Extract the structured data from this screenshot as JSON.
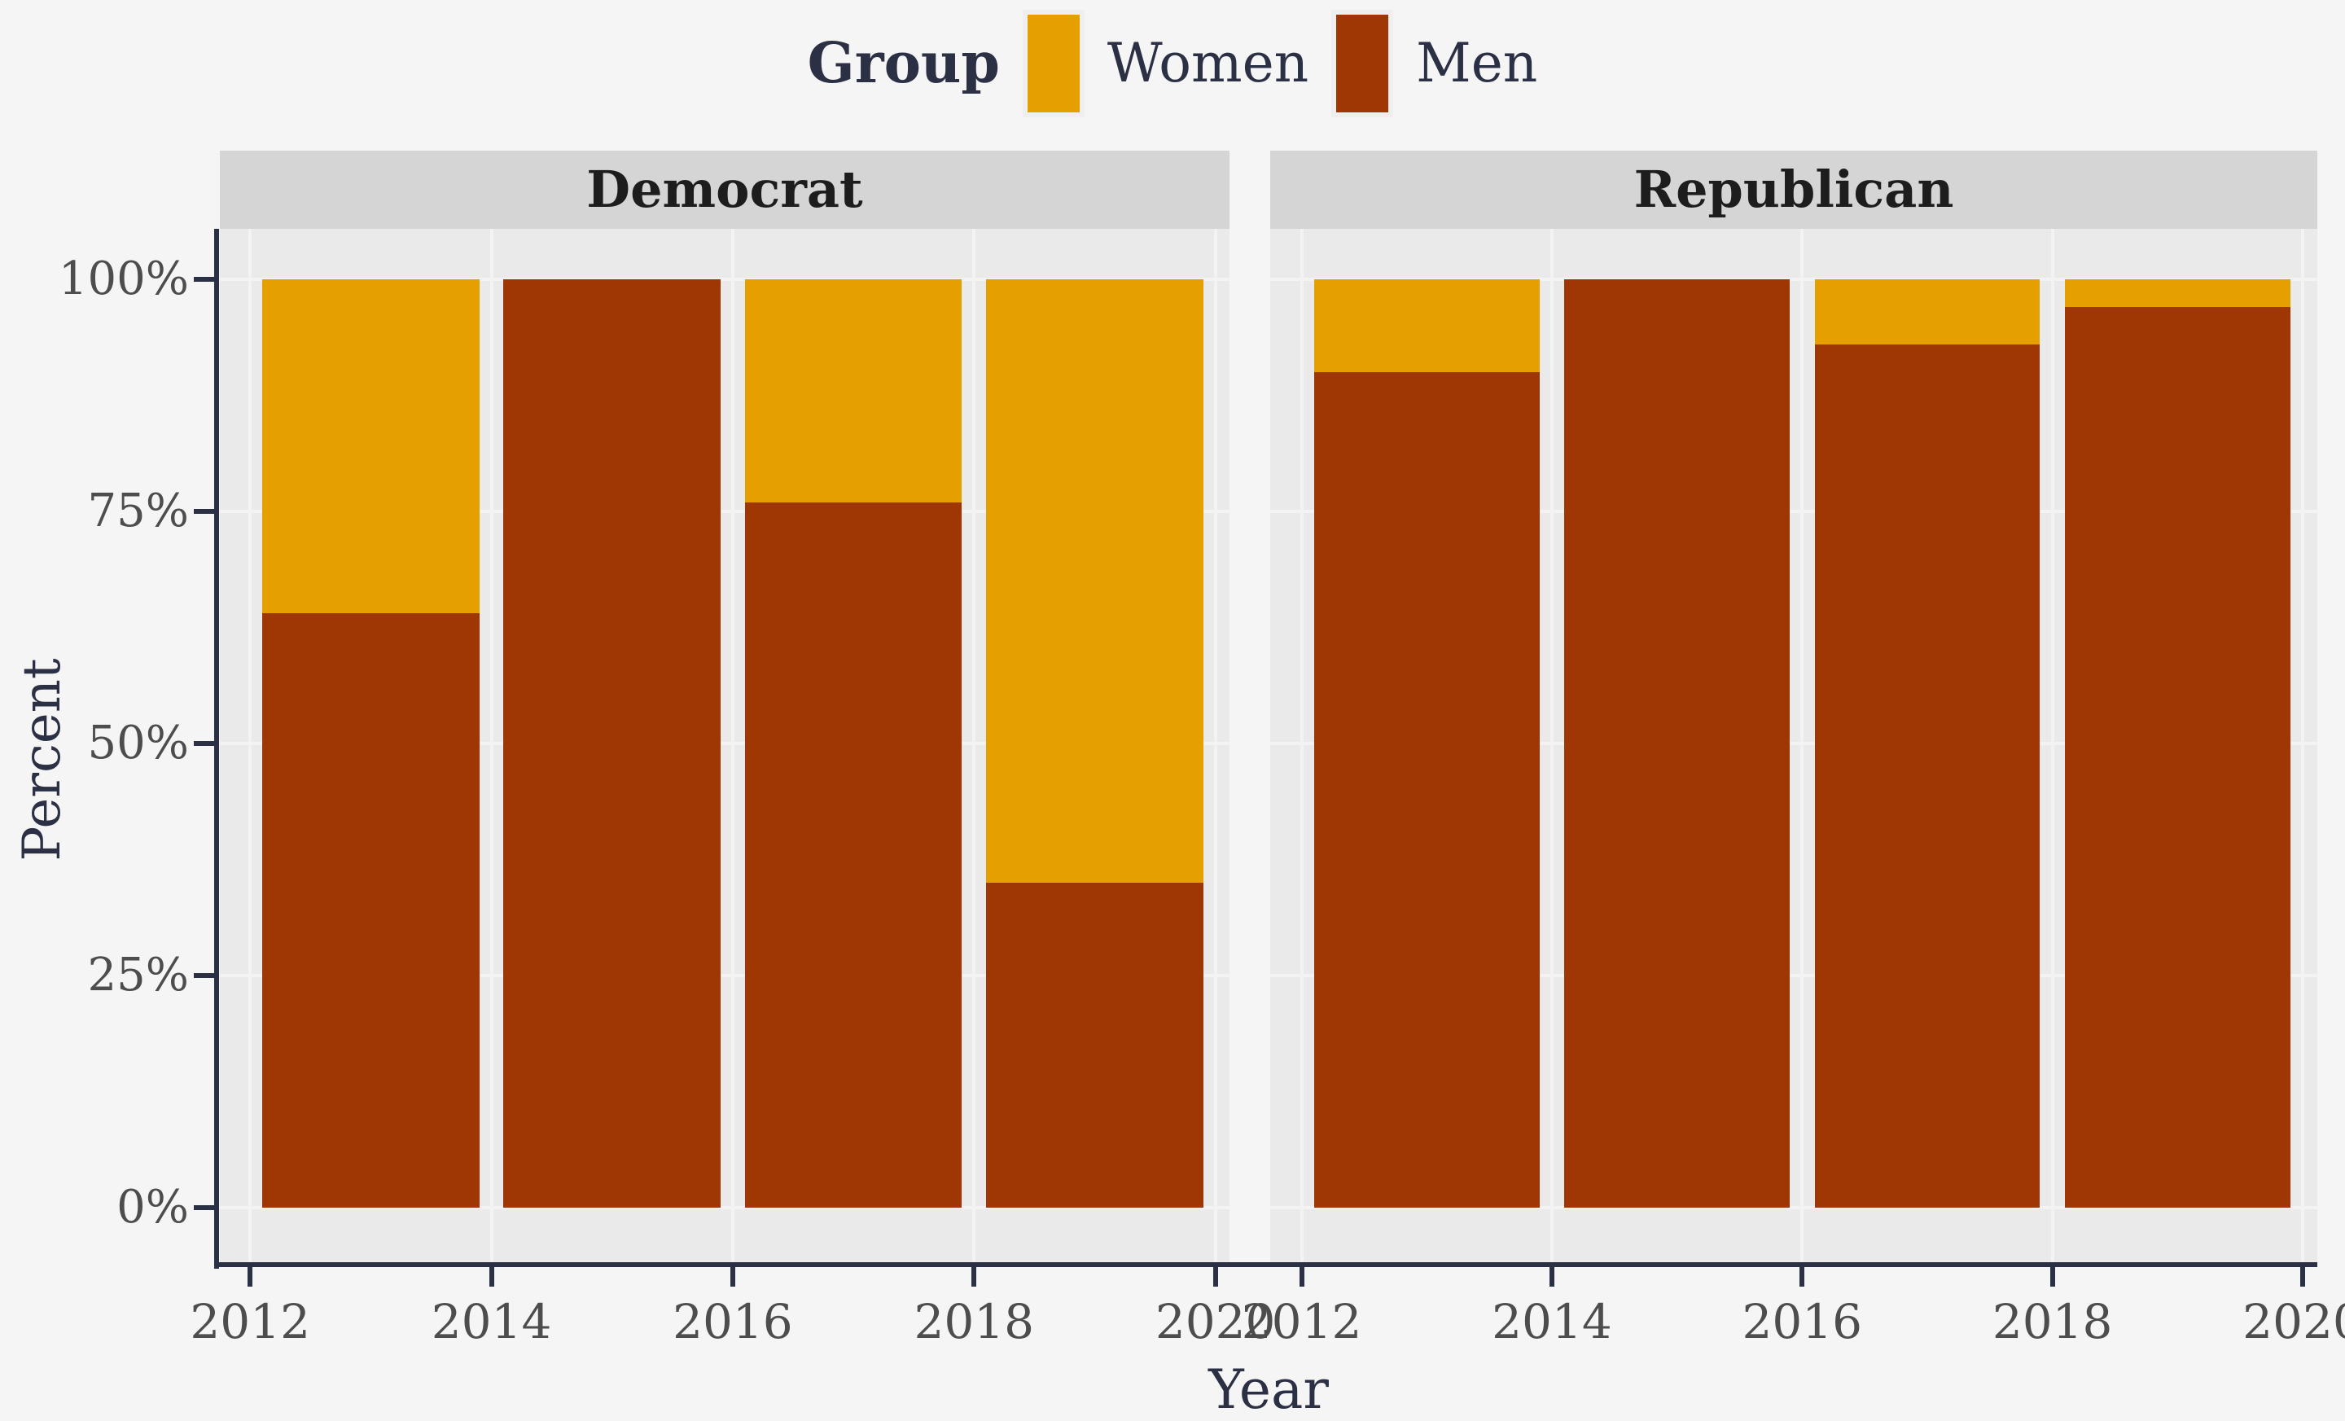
{
  "legend": {
    "title": "Group",
    "items": [
      {
        "label": "Women",
        "color": "#E5A000"
      },
      {
        "label": "Men",
        "color": "#9E3703"
      }
    ]
  },
  "colors": {
    "women": "#E5A000",
    "men": "#9E3703",
    "figure_background": "#F5F5F5",
    "panel_background": "#EAEAEA",
    "strip_background": "#D5D5D5",
    "gridline": "#F3F3F3",
    "axis_line": "#2B3044",
    "tick_label": "#4D4D4D",
    "title_text": "#2B3044"
  },
  "chart_data": {
    "type": "bar",
    "stacked": true,
    "stack_unit": "percent",
    "title": "",
    "xlabel": "Year",
    "ylabel": "Percent",
    "legend_position": "top",
    "grid": true,
    "facets": [
      {
        "label": "Democrat",
        "categories": [
          2013,
          2015,
          2017,
          2019
        ],
        "series": [
          {
            "name": "Men",
            "values": [
              64,
              100,
              76,
              35
            ]
          },
          {
            "name": "Women",
            "values": [
              36,
              0,
              24,
              65
            ]
          }
        ]
      },
      {
        "label": "Republican",
        "categories": [
          2013,
          2015,
          2017,
          2019
        ],
        "series": [
          {
            "name": "Men",
            "values": [
              90,
              100,
              93,
              97
            ]
          },
          {
            "name": "Women",
            "values": [
              10,
              0,
              7,
              3
            ]
          }
        ]
      }
    ],
    "series_colors": {
      "Women": "#E5A000",
      "Men": "#9E3703"
    },
    "x_ticks": [
      2012,
      2014,
      2016,
      2018,
      2020
    ],
    "x_tick_labels": [
      "2012",
      "2014",
      "2016",
      "2018",
      "2020"
    ],
    "y_tick_labels": [
      "0%",
      "25%",
      "50%",
      "75%",
      "100%"
    ],
    "y_tick_values": [
      0,
      25,
      50,
      75,
      100
    ],
    "ylim": [
      0,
      100
    ],
    "bar_width_years": 1.8
  }
}
